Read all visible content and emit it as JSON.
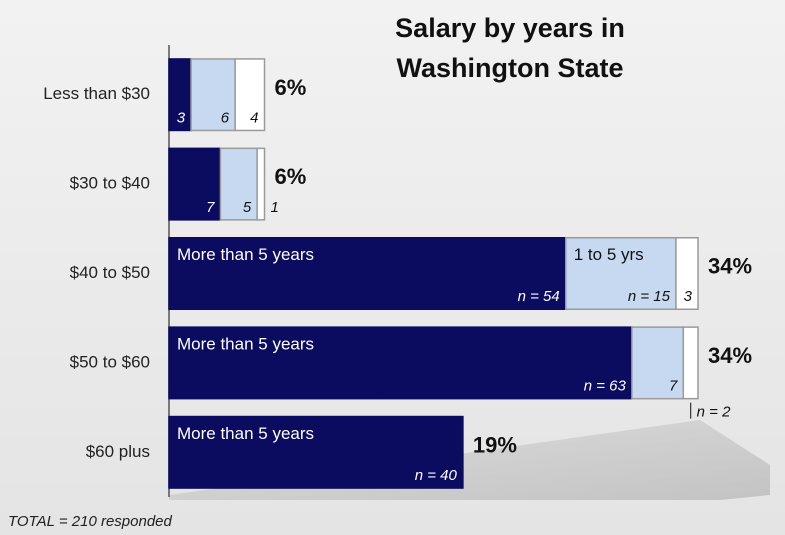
{
  "chart_data": {
    "type": "stacked_bar_horizontal",
    "title_lines": [
      "Salary by years in",
      "Washington State"
    ],
    "categories": [
      "Less than $30",
      "$30 to $40",
      "$40 to $50",
      "$50 to $60",
      "$60 plus"
    ],
    "series": [
      {
        "name": "More than 5 years",
        "color": "#0b0b5f",
        "values": [
          3,
          7,
          54,
          63,
          40
        ],
        "value_labels": [
          "3",
          "7",
          "n = 54",
          "n = 63",
          "n = 40"
        ]
      },
      {
        "name": "1 to 5 yrs",
        "color": "#c6d9f1",
        "values": [
          6,
          5,
          15,
          7,
          null
        ],
        "value_labels": [
          "6",
          "5",
          "n = 15",
          "7",
          null
        ]
      },
      {
        "color": "#ffffff",
        "values": [
          4,
          1,
          3,
          2,
          null
        ],
        "value_labels": [
          "4",
          "1",
          "3",
          "n = 2",
          null
        ]
      }
    ],
    "percent": [
      6,
      6,
      34,
      34,
      19
    ],
    "percent_labels": [
      "6%",
      "6%",
      "34%",
      "34%",
      "19%"
    ],
    "xlim": [
      0,
      72
    ],
    "footnote": "TOTAL = 210 responded"
  }
}
